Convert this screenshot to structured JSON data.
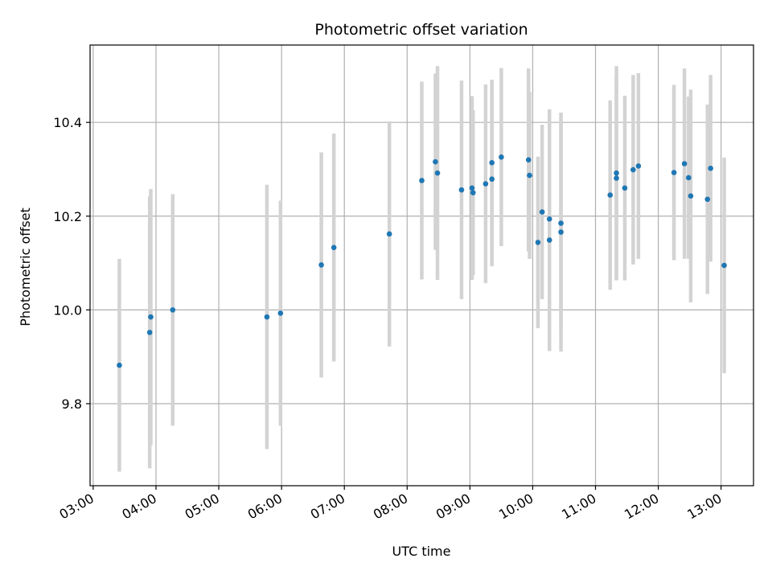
{
  "chart_data": {
    "type": "scatter",
    "title": "Photometric offset variation",
    "xlabel": "UTC time",
    "ylabel": "Photometric offset",
    "x_tick_labels": [
      "03:00",
      "04:00",
      "05:00",
      "06:00",
      "07:00",
      "08:00",
      "09:00",
      "10:00",
      "11:00",
      "12:00",
      "13:00"
    ],
    "y_ticks": [
      9.8,
      10.0,
      10.2,
      10.4
    ],
    "y_tick_labels": [
      "9.8",
      "10.0",
      "10.2",
      "10.4"
    ],
    "xlim": [
      "02:57",
      "13:31"
    ],
    "ylim": [
      9.625,
      10.565
    ],
    "grid": true,
    "marker_color": "#1f77b4",
    "errorbar_color": "#d3d3d3",
    "series": [
      {
        "points": [
          {
            "x": "03:25",
            "y": 9.882,
            "err": 0.227
          },
          {
            "x": "03:54",
            "y": 9.952,
            "err": 0.29
          },
          {
            "x": "03:55",
            "y": 9.985,
            "err": 0.273
          },
          {
            "x": "04:16",
            "y": 10.0,
            "err": 0.247
          },
          {
            "x": "05:46",
            "y": 9.985,
            "err": 0.282
          },
          {
            "x": "05:59",
            "y": 9.993,
            "err": 0.24
          },
          {
            "x": "06:38",
            "y": 10.096,
            "err": 0.24
          },
          {
            "x": "06:50",
            "y": 10.133,
            "err": 0.243
          },
          {
            "x": "07:43",
            "y": 10.162,
            "err": 0.24
          },
          {
            "x": "08:14",
            "y": 10.276,
            "err": 0.211
          },
          {
            "x": "08:27",
            "y": 10.316,
            "err": 0.188
          },
          {
            "x": "08:29",
            "y": 10.292,
            "err": 0.228
          },
          {
            "x": "08:52",
            "y": 10.256,
            "err": 0.233
          },
          {
            "x": "09:02",
            "y": 10.26,
            "err": 0.196
          },
          {
            "x": "09:03",
            "y": 10.25,
            "err": 0.176
          },
          {
            "x": "09:15",
            "y": 10.269,
            "err": 0.212
          },
          {
            "x": "09:21",
            "y": 10.314,
            "err": 0.177
          },
          {
            "x": "09:21",
            "y": 10.279,
            "err": 0.186
          },
          {
            "x": "09:30",
            "y": 10.326,
            "err": 0.19
          },
          {
            "x": "09:56",
            "y": 10.32,
            "err": 0.195
          },
          {
            "x": "09:57",
            "y": 10.287,
            "err": 0.178
          },
          {
            "x": "10:05",
            "y": 10.144,
            "err": 0.183
          },
          {
            "x": "10:09",
            "y": 10.209,
            "err": 0.186
          },
          {
            "x": "10:16",
            "y": 10.194,
            "err": 0.234
          },
          {
            "x": "10:16",
            "y": 10.149,
            "err": 0.237
          },
          {
            "x": "10:27",
            "y": 10.185,
            "err": 0.225
          },
          {
            "x": "10:27",
            "y": 10.166,
            "err": 0.255
          },
          {
            "x": "11:14",
            "y": 10.245,
            "err": 0.202
          },
          {
            "x": "11:20",
            "y": 10.292,
            "err": 0.228
          },
          {
            "x": "11:20",
            "y": 10.281,
            "err": 0.218
          },
          {
            "x": "11:28",
            "y": 10.26,
            "err": 0.197
          },
          {
            "x": "11:36",
            "y": 10.299,
            "err": 0.202
          },
          {
            "x": "11:41",
            "y": 10.307,
            "err": 0.198
          },
          {
            "x": "12:15",
            "y": 10.293,
            "err": 0.187
          },
          {
            "x": "12:25",
            "y": 10.312,
            "err": 0.203
          },
          {
            "x": "12:29",
            "y": 10.282,
            "err": 0.173
          },
          {
            "x": "12:31",
            "y": 10.243,
            "err": 0.227
          },
          {
            "x": "12:47",
            "y": 10.236,
            "err": 0.202
          },
          {
            "x": "12:50",
            "y": 10.302,
            "err": 0.199
          },
          {
            "x": "13:03",
            "y": 10.095,
            "err": 0.23
          }
        ]
      }
    ]
  }
}
